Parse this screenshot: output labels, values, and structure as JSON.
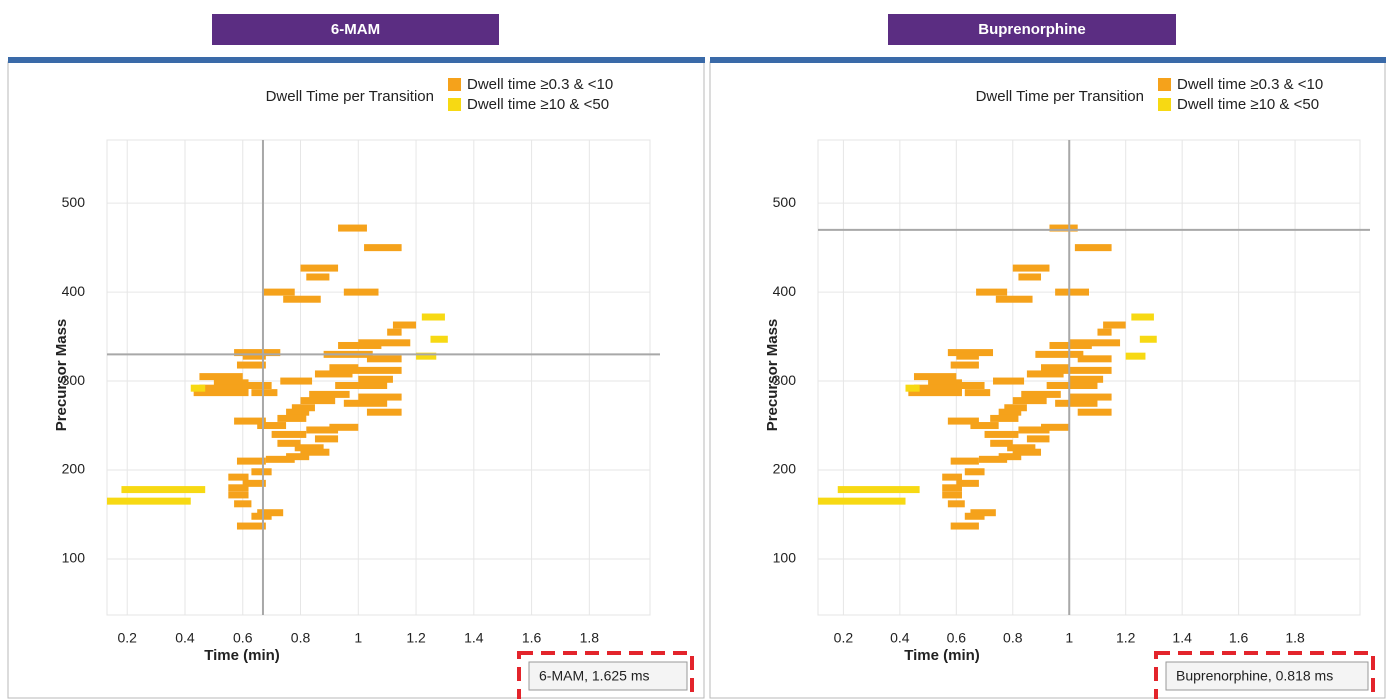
{
  "chart_data": [
    {
      "type": "segments",
      "header": "6-MAM",
      "legend_title": "Dwell Time per Transition",
      "x_label": "Time (min)",
      "y_label": "Precursor Mass",
      "annotation": "6-MAM, 1.625 ms",
      "xlim": [
        0.13,
        2.01
      ],
      "ylim": [
        37,
        571
      ],
      "xticks": [
        0.2,
        0.4,
        0.6,
        0.8,
        1,
        1.2,
        1.4,
        1.6,
        1.8
      ],
      "yticks": [
        100,
        200,
        300,
        400,
        500
      ],
      "grid": true,
      "crosshair": {
        "x": 0.67,
        "y": 330
      },
      "series": [
        {
          "name": "Dwell time ≥0.3 & <10",
          "color": "#f5a21b",
          "x": [
            0.93,
            1.02,
            0.8,
            0.82,
            0.67,
            0.95,
            0.74,
            1.12,
            1.1,
            0.57,
            0.6,
            0.93,
            1.0,
            0.88,
            1.03,
            0.58,
            0.9,
            0.95,
            0.45,
            0.85,
            1.0,
            0.5,
            0.45,
            0.6,
            0.73,
            0.92,
            0.43,
            0.63,
            0.83,
            1.0,
            0.8,
            0.95,
            0.77,
            0.75,
            1.03,
            0.72,
            0.57,
            0.65,
            0.9,
            0.82,
            0.7,
            0.85,
            0.72,
            0.78,
            0.8,
            0.75,
            0.58,
            0.68,
            0.63,
            0.55,
            0.6,
            0.55,
            0.55,
            0.57,
            0.65,
            0.63,
            0.58
          ],
          "x_end": [
            1.03,
            1.15,
            0.93,
            0.9,
            0.78,
            1.07,
            0.87,
            1.2,
            1.15,
            0.73,
            0.68,
            1.08,
            1.18,
            1.05,
            1.15,
            0.68,
            1.0,
            1.15,
            0.6,
            0.98,
            1.12,
            0.62,
            0.62,
            0.7,
            0.84,
            1.1,
            0.62,
            0.72,
            0.97,
            1.15,
            0.92,
            1.1,
            0.85,
            0.83,
            1.15,
            0.82,
            0.68,
            0.75,
            1.0,
            0.93,
            0.82,
            0.93,
            0.8,
            0.88,
            0.9,
            0.83,
            0.68,
            0.78,
            0.7,
            0.62,
            0.68,
            0.62,
            0.62,
            0.63,
            0.74,
            0.7,
            0.68
          ],
          "values": [
            472,
            450,
            427,
            417,
            400,
            400,
            392,
            363,
            355,
            332,
            328,
            340,
            343,
            330,
            325,
            318,
            315,
            312,
            305,
            308,
            302,
            298,
            292,
            295,
            300,
            295,
            287,
            287,
            285,
            282,
            278,
            275,
            270,
            265,
            265,
            258,
            255,
            250,
            248,
            245,
            240,
            235,
            230,
            225,
            220,
            215,
            210,
            212,
            198,
            192,
            185,
            180,
            172,
            162,
            152,
            148,
            137
          ]
        },
        {
          "name": "Dwell time ≥10 & <50",
          "color": "#f7d913",
          "x": [
            0.13,
            0.18,
            0.42,
            1.22,
            1.25,
            1.2
          ],
          "x_end": [
            0.42,
            0.47,
            0.47,
            1.3,
            1.31,
            1.27
          ],
          "values": [
            165,
            178,
            292,
            372,
            347,
            328
          ]
        }
      ]
    },
    {
      "type": "segments",
      "header": "Buprenorphine",
      "legend_title": "Dwell Time per Transition",
      "x_label": "Time (min)",
      "y_label": "Precursor Mass",
      "annotation": "Buprenorphine, 0.818 ms",
      "xlim": [
        0.11,
        2.03
      ],
      "ylim": [
        37,
        571
      ],
      "xticks": [
        0.2,
        0.4,
        0.6,
        0.8,
        1,
        1.2,
        1.4,
        1.6,
        1.8
      ],
      "yticks": [
        100,
        200,
        300,
        400,
        500
      ],
      "grid": true,
      "crosshair": {
        "x": 1.0,
        "y": 470
      },
      "series": [
        {
          "name": "Dwell time ≥0.3 & <10",
          "color": "#f5a21b",
          "x": [
            0.93,
            1.02,
            0.8,
            0.82,
            0.67,
            0.95,
            0.74,
            1.12,
            1.1,
            0.57,
            0.6,
            0.93,
            1.0,
            0.88,
            1.03,
            0.58,
            0.9,
            0.95,
            0.45,
            0.85,
            1.0,
            0.5,
            0.45,
            0.6,
            0.73,
            0.92,
            0.43,
            0.63,
            0.83,
            1.0,
            0.8,
            0.95,
            0.77,
            0.75,
            1.03,
            0.72,
            0.57,
            0.65,
            0.9,
            0.82,
            0.7,
            0.85,
            0.72,
            0.78,
            0.8,
            0.75,
            0.58,
            0.68,
            0.63,
            0.55,
            0.6,
            0.55,
            0.55,
            0.57,
            0.65,
            0.63,
            0.58
          ],
          "x_end": [
            1.03,
            1.15,
            0.93,
            0.9,
            0.78,
            1.07,
            0.87,
            1.2,
            1.15,
            0.73,
            0.68,
            1.08,
            1.18,
            1.05,
            1.15,
            0.68,
            1.0,
            1.15,
            0.6,
            0.98,
            1.12,
            0.62,
            0.62,
            0.7,
            0.84,
            1.1,
            0.62,
            0.72,
            0.97,
            1.15,
            0.92,
            1.1,
            0.85,
            0.83,
            1.15,
            0.82,
            0.68,
            0.75,
            1.0,
            0.93,
            0.82,
            0.93,
            0.8,
            0.88,
            0.9,
            0.83,
            0.68,
            0.78,
            0.7,
            0.62,
            0.68,
            0.62,
            0.62,
            0.63,
            0.74,
            0.7,
            0.68
          ],
          "values": [
            472,
            450,
            427,
            417,
            400,
            400,
            392,
            363,
            355,
            332,
            328,
            340,
            343,
            330,
            325,
            318,
            315,
            312,
            305,
            308,
            302,
            298,
            292,
            295,
            300,
            295,
            287,
            287,
            285,
            282,
            278,
            275,
            270,
            265,
            265,
            258,
            255,
            250,
            248,
            245,
            240,
            235,
            230,
            225,
            220,
            215,
            210,
            212,
            198,
            192,
            185,
            180,
            172,
            162,
            152,
            148,
            137
          ]
        },
        {
          "name": "Dwell time ≥10 & <50",
          "color": "#f7d913",
          "x": [
            0.11,
            0.18,
            0.42,
            1.22,
            1.25,
            1.2
          ],
          "x_end": [
            0.42,
            0.47,
            0.47,
            1.3,
            1.31,
            1.27
          ],
          "values": [
            165,
            178,
            292,
            372,
            347,
            328
          ]
        }
      ]
    }
  ]
}
